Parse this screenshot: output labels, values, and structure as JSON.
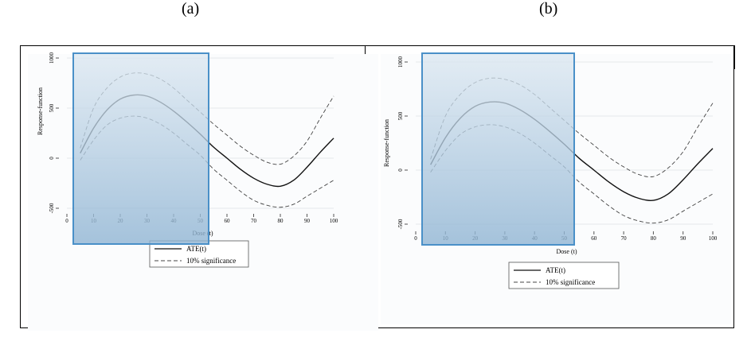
{
  "labels": {
    "a": "(a)",
    "b": "(b)"
  },
  "chart_data": [
    {
      "type": "line",
      "panel": "(a)",
      "xlabel": "Dose (t)",
      "ylabel": "Response-function",
      "xlim": [
        0,
        100
      ],
      "ylim": [
        -500,
        1000
      ],
      "xticks": [
        0,
        10,
        20,
        30,
        40,
        50,
        60,
        70,
        80,
        90,
        100
      ],
      "yticks": [
        -500,
        0,
        500,
        1000
      ],
      "grid": "horizontal",
      "legend_position": "bottom-center",
      "series": [
        {
          "name": "ATE(t)",
          "style": "solid",
          "x": [
            5,
            10,
            15,
            20,
            25,
            30,
            35,
            40,
            45,
            50,
            55,
            60,
            65,
            70,
            75,
            80,
            85,
            90,
            95,
            100
          ],
          "y": [
            50,
            300,
            480,
            590,
            630,
            620,
            560,
            470,
            360,
            240,
            110,
            0,
            -110,
            -200,
            -260,
            -280,
            -220,
            -90,
            60,
            200
          ]
        },
        {
          "name": "10% significance",
          "style": "dashed",
          "x": [
            5,
            10,
            15,
            20,
            25,
            30,
            35,
            40,
            45,
            50,
            55,
            60,
            65,
            70,
            75,
            80,
            85,
            90,
            95,
            100
          ],
          "y": [
            100,
            500,
            700,
            810,
            850,
            840,
            790,
            700,
            580,
            460,
            340,
            230,
            120,
            30,
            -40,
            -60,
            20,
            170,
            400,
            620
          ]
        },
        {
          "name": "",
          "style": "dashed",
          "x": [
            5,
            10,
            15,
            20,
            25,
            30,
            35,
            40,
            45,
            50,
            55,
            60,
            65,
            70,
            75,
            80,
            85,
            90,
            95,
            100
          ],
          "y": [
            -20,
            180,
            330,
            400,
            420,
            400,
            340,
            250,
            140,
            30,
            -110,
            -220,
            -330,
            -420,
            -470,
            -490,
            -460,
            -380,
            -300,
            -220
          ]
        }
      ]
    },
    {
      "type": "line",
      "panel": "(b)",
      "xlabel": "Dose (t)",
      "ylabel": "Response-function",
      "xlim": [
        0,
        100
      ],
      "ylim": [
        -500,
        1000
      ],
      "xticks": [
        0,
        10,
        20,
        30,
        40,
        50,
        60,
        70,
        80,
        90,
        100
      ],
      "yticks": [
        -500,
        0,
        500,
        1000
      ],
      "grid": "horizontal",
      "legend_position": "bottom-center",
      "series": [
        {
          "name": "ATE(t)",
          "style": "solid",
          "x": [
            5,
            10,
            15,
            20,
            25,
            30,
            35,
            40,
            45,
            50,
            55,
            60,
            65,
            70,
            75,
            80,
            85,
            90,
            95,
            100
          ],
          "y": [
            50,
            300,
            480,
            590,
            630,
            620,
            560,
            470,
            360,
            240,
            110,
            0,
            -110,
            -200,
            -260,
            -280,
            -220,
            -90,
            60,
            200
          ]
        },
        {
          "name": "10% significance",
          "style": "dashed",
          "x": [
            5,
            10,
            15,
            20,
            25,
            30,
            35,
            40,
            45,
            50,
            55,
            60,
            65,
            70,
            75,
            80,
            85,
            90,
            95,
            100
          ],
          "y": [
            100,
            500,
            700,
            810,
            850,
            840,
            790,
            700,
            580,
            460,
            340,
            230,
            120,
            30,
            -40,
            -60,
            20,
            170,
            400,
            620
          ]
        },
        {
          "name": "",
          "style": "dashed",
          "x": [
            5,
            10,
            15,
            20,
            25,
            30,
            35,
            40,
            45,
            50,
            55,
            60,
            65,
            70,
            75,
            80,
            85,
            90,
            95,
            100
          ],
          "y": [
            -20,
            180,
            330,
            400,
            420,
            400,
            340,
            250,
            140,
            30,
            -110,
            -220,
            -330,
            -420,
            -470,
            -490,
            -460,
            -380,
            -300,
            -220
          ]
        }
      ]
    }
  ],
  "legend": {
    "solid_label": "ATE(t)",
    "dashed_label": "10% significance"
  },
  "highlight_color": "#4a90c8"
}
